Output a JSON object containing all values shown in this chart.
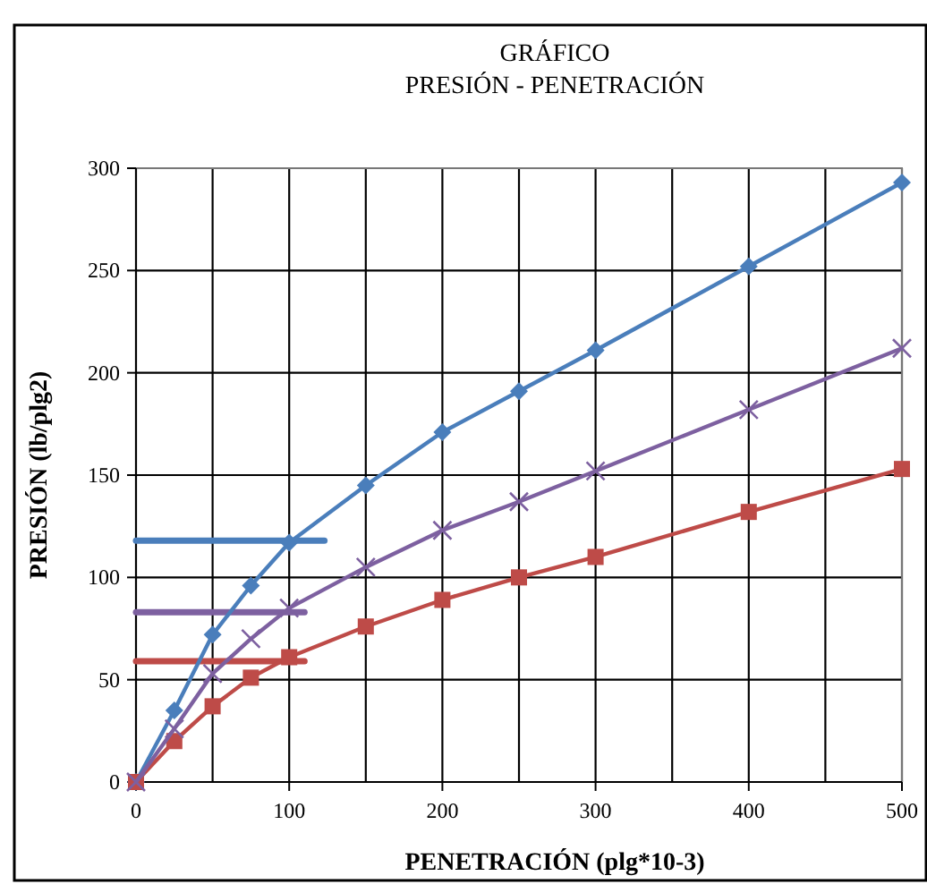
{
  "chart_data": {
    "type": "line",
    "title": "GRÁFICO",
    "subtitle": "PRESIÓN - PENETRACIÓN",
    "xlabel": "PENETRACIÓN  (plg*10-3)",
    "ylabel": "PRESIÓN (lb/plg2)",
    "xlim": [
      0,
      500
    ],
    "ylim": [
      0,
      300
    ],
    "xticks": [
      0,
      {
        "value": 50,
        "label": null
      },
      100,
      {
        "value": 150,
        "label": null
      },
      200,
      {
        "value": 250,
        "label": null
      },
      300,
      {
        "value": 350,
        "label": null
      },
      400,
      {
        "value": 450,
        "label": null
      },
      500
    ],
    "yticks": [
      0,
      50,
      100,
      150,
      200,
      250,
      300
    ],
    "grid": true,
    "series": [
      {
        "color": "#4a7ebb",
        "marker": "none",
        "x": [
          0,
          123
        ],
        "values": [
          118,
          118
        ]
      },
      {
        "color": "#7d60a0",
        "marker": "none",
        "x": [
          0,
          110
        ],
        "values": [
          83,
          83
        ]
      },
      {
        "color": "#be4b48",
        "marker": "none",
        "x": [
          0,
          110
        ],
        "values": [
          59,
          59
        ]
      },
      {
        "color": "#4a7ebb",
        "marker": "diamond",
        "x": [
          0,
          25,
          50,
          75,
          100,
          150,
          200,
          250,
          300,
          400,
          500
        ],
        "values": [
          0,
          35,
          72,
          96,
          117,
          145,
          171,
          191,
          211,
          252,
          293
        ]
      },
      {
        "color": "#be4b48",
        "marker": "square",
        "x": [
          0,
          25,
          50,
          75,
          100,
          150,
          200,
          250,
          300,
          400,
          500
        ],
        "values": [
          0,
          20,
          37,
          51,
          61,
          76,
          89,
          100,
          110,
          132,
          153
        ]
      },
      {
        "color": "#7d60a0",
        "marker": "cross",
        "x": [
          0,
          25,
          50,
          75,
          100,
          150,
          200,
          250,
          300,
          400,
          500
        ],
        "values": [
          0,
          26,
          53,
          70,
          85,
          105,
          123,
          137,
          152,
          182,
          212
        ]
      }
    ]
  }
}
